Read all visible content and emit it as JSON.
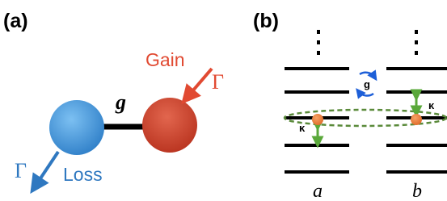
{
  "panel_a": {
    "label": "(a)",
    "coupling": "g",
    "gain_label": "Gain",
    "gain_rate": "Γ",
    "loss_label": "Loss",
    "loss_rate": "Γ"
  },
  "panel_b": {
    "label": "(b)",
    "coupling": "g",
    "left_decay": "κ",
    "right_decay": "κ",
    "left_mode": "a",
    "right_mode": "b"
  }
}
